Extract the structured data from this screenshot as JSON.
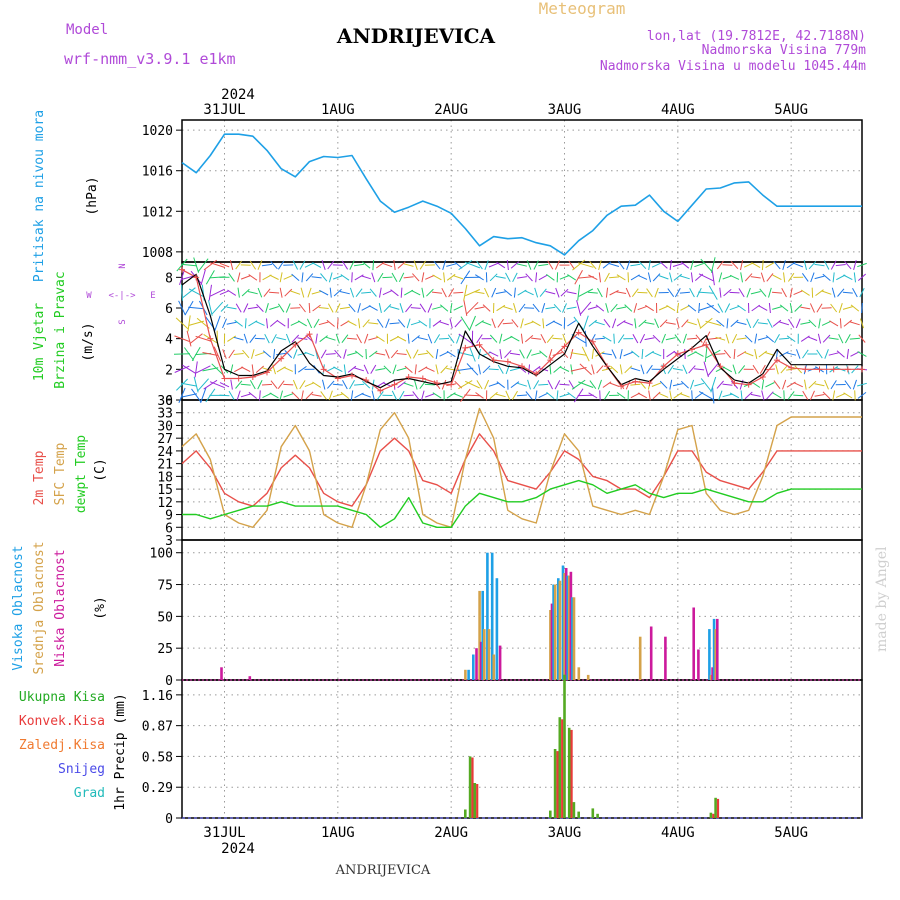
{
  "header": {
    "model_label": "Model",
    "model_name": "wrf-nmm_v3.9.1 e1km",
    "station": "ANDRIJEVICA",
    "meteogram_label": "Meteogram",
    "coords": "lon,lat (19.7812E, 42.7188N)",
    "altitude": "Nadmorska Visina 779m",
    "model_altitude": "Nadmorska Visina u modelu 1045.44m",
    "credit": "made by Angel",
    "footer_station": "ANDRIJEVICA"
  },
  "colors": {
    "pressure": "#1ea0e6",
    "temp2m": "#e8504a",
    "sfc_temp": "#d4a24a",
    "dewpoint": "#22cc22",
    "cloud_high": "#1ea0e6",
    "cloud_mid": "#d4a24a",
    "cloud_low": "#cc1a9c",
    "precip_total": "#55aa22",
    "precip_conv": "#e83a3a",
    "model_label": "#b04ad8"
  },
  "chart_data": [
    {
      "type": "line",
      "name": "pressure",
      "title_lines": [
        "Pritisak na nivou mora",
        "(hPa)"
      ],
      "ylim": [
        1007,
        1021
      ],
      "yticks": [
        1008,
        1012,
        1016,
        1020
      ],
      "x": [
        0,
        3,
        6,
        9,
        12,
        15,
        18,
        21,
        24,
        27,
        30,
        33,
        36,
        39,
        42,
        45,
        48,
        51,
        54,
        57,
        60,
        63,
        66,
        69,
        72,
        75,
        78,
        81,
        84,
        87,
        90,
        93,
        96,
        99,
        102,
        105,
        108,
        111,
        114,
        117,
        120,
        123,
        126,
        129,
        132,
        135,
        138,
        141,
        144
      ],
      "values": [
        1016.8,
        1015.8,
        1017.5,
        1019.6,
        1019.6,
        1019.4,
        1018.0,
        1016.2,
        1015.4,
        1016.9,
        1017.4,
        1017.3,
        1017.5,
        1015.2,
        1013.0,
        1011.9,
        1012.4,
        1013.0,
        1012.5,
        1011.8,
        1010.3,
        1008.6,
        1009.5,
        1009.3,
        1009.4,
        1008.9,
        1008.6,
        1007.7,
        1009.1,
        1010.1,
        1011.6,
        1012.5,
        1012.6,
        1013.6,
        1012.0,
        1011.0,
        1012.6,
        1014.2,
        1014.3,
        1014.8,
        1014.9,
        1013.6,
        1012.5,
        1012.5,
        1012.5,
        1012.5,
        1012.5,
        1012.5,
        1012.5
      ]
    },
    {
      "type": "line",
      "name": "wind",
      "title_lines": [
        "10m Vjetar",
        "Brzina i Pravac",
        "(m/s)"
      ],
      "compass": {
        "north": "N",
        "south": "S",
        "west": "W",
        "east": "E"
      },
      "ylim": [
        0,
        9
      ],
      "yticks": [
        0,
        2,
        4,
        6,
        8
      ],
      "x": [
        0,
        3,
        6,
        9,
        12,
        15,
        18,
        21,
        24,
        27,
        30,
        33,
        36,
        39,
        42,
        45,
        48,
        51,
        54,
        57,
        60,
        63,
        66,
        69,
        72,
        75,
        78,
        81,
        84,
        87,
        90,
        93,
        96,
        99,
        102,
        105,
        108,
        111,
        114,
        117,
        120,
        123,
        126,
        129,
        132,
        135,
        138,
        141,
        144
      ],
      "speed": [
        7.5,
        8.2,
        5.5,
        2.0,
        1.6,
        1.6,
        1.9,
        3.2,
        3.8,
        2.4,
        1.6,
        1.5,
        1.7,
        1.2,
        0.8,
        1.3,
        1.4,
        1.2,
        1.0,
        1.2,
        4.5,
        3.0,
        2.5,
        2.2,
        2.1,
        1.6,
        2.3,
        3.0,
        5.0,
        3.5,
        2.2,
        1.0,
        1.4,
        1.2,
        2.0,
        2.7,
        3.4,
        4.2,
        2.1,
        1.3,
        1.1,
        1.7,
        3.3,
        2.3,
        2.3,
        2.3,
        2.3,
        2.3,
        2.3
      ],
      "gust": [
        8.5,
        8.0,
        4.0,
        1.4,
        1.4,
        1.5,
        1.8,
        2.7,
        3.6,
        4.3,
        2.0,
        1.4,
        1.6,
        1.3,
        0.6,
        1.0,
        1.5,
        1.4,
        1.1,
        1.0,
        3.4,
        3.6,
        2.6,
        2.5,
        2.2,
        1.7,
        2.6,
        3.5,
        4.4,
        3.8,
        2.2,
        0.9,
        1.2,
        1.1,
        2.2,
        3.0,
        3.3,
        3.6,
        2.2,
        1.1,
        1.0,
        1.5,
        2.6,
        2.1,
        2.0,
        2.0,
        2.0,
        2.0,
        2.0
      ]
    },
    {
      "type": "line",
      "name": "temperature",
      "title_lines": [
        "2m Temp",
        "SFC Temp",
        "dewpt Temp",
        "(C)"
      ],
      "ylim": [
        3,
        36
      ],
      "yticks": [
        3,
        6,
        9,
        12,
        15,
        18,
        21,
        24,
        27,
        30,
        33,
        36
      ],
      "x": [
        0,
        3,
        6,
        9,
        12,
        15,
        18,
        21,
        24,
        27,
        30,
        33,
        36,
        39,
        42,
        45,
        48,
        51,
        54,
        57,
        60,
        63,
        66,
        69,
        72,
        75,
        78,
        81,
        84,
        87,
        90,
        93,
        96,
        99,
        102,
        105,
        108,
        111,
        114,
        117,
        120,
        123,
        126,
        129,
        132,
        135,
        138,
        141,
        144
      ],
      "series": [
        {
          "name": "2m Temp",
          "values": [
            21,
            24,
            20,
            14,
            12,
            11,
            14,
            20,
            23,
            20,
            14,
            12,
            11,
            16,
            24,
            27,
            24,
            17,
            16,
            14,
            22,
            28,
            24,
            17,
            16,
            15,
            19,
            24,
            22,
            18,
            17,
            15,
            15,
            13,
            18,
            24,
            24,
            19,
            17,
            16,
            15,
            19,
            24,
            24,
            24,
            24,
            24,
            24,
            24
          ]
        },
        {
          "name": "SFC Temp",
          "values": [
            25,
            28,
            22,
            9,
            7,
            6,
            10,
            25,
            30,
            24,
            9,
            7,
            6,
            16,
            29,
            33,
            27,
            9,
            7,
            6,
            22,
            34,
            27,
            10,
            8,
            7,
            19,
            28,
            24,
            11,
            10,
            9,
            10,
            9,
            18,
            29,
            30,
            14,
            10,
            9,
            10,
            18,
            30,
            32,
            32,
            32,
            32,
            32,
            32
          ]
        },
        {
          "name": "dewpt Temp",
          "values": [
            9,
            9,
            8,
            9,
            10,
            11,
            11,
            12,
            11,
            11,
            11,
            11,
            10,
            9,
            6,
            8,
            13,
            7,
            6,
            6,
            11,
            14,
            13,
            12,
            12,
            13,
            15,
            16,
            17,
            16,
            14,
            15,
            16,
            14,
            13,
            14,
            14,
            15,
            14,
            13,
            12,
            12,
            14,
            15,
            15,
            15,
            15,
            15,
            15
          ]
        }
      ]
    },
    {
      "type": "bar",
      "name": "cloud_cover",
      "title_lines": [
        "Visoka Oblacnost",
        "Srednja Oblacnost",
        "Niska Oblacnost",
        "(%)"
      ],
      "ylim": [
        0,
        110
      ],
      "yticks": [
        0,
        25,
        50,
        75,
        100
      ],
      "x": [
        8,
        14,
        60,
        61,
        62,
        63,
        64,
        65,
        66,
        67,
        69,
        78,
        79,
        80,
        81,
        82,
        83,
        84,
        85,
        86,
        87,
        88,
        92,
        97,
        98,
        99,
        102,
        103,
        104,
        108,
        109,
        111,
        112,
        113,
        114
      ],
      "series": [
        {
          "name": "Visoka Oblacnost",
          "values": [
            0,
            0,
            0,
            8,
            20,
            0,
            70,
            100,
            100,
            80,
            0,
            0,
            75,
            80,
            90,
            82,
            65,
            0,
            0,
            0,
            0,
            0,
            0,
            0,
            0,
            0,
            0,
            0,
            0,
            0,
            0,
            0,
            40,
            48,
            0
          ]
        },
        {
          "name": "Srednja Oblacnost",
          "values": [
            0,
            0,
            8,
            0,
            0,
            70,
            40,
            40,
            20,
            0,
            0,
            55,
            75,
            78,
            84,
            82,
            65,
            10,
            0,
            4,
            0,
            0,
            0,
            34,
            0,
            0,
            0,
            0,
            0,
            0,
            0,
            0,
            4,
            40,
            0
          ]
        },
        {
          "name": "Niska Oblacnost",
          "values": [
            10,
            3,
            0,
            0,
            25,
            30,
            0,
            0,
            0,
            27,
            0,
            60,
            0,
            0,
            88,
            85,
            0,
            0,
            0,
            0,
            0,
            0,
            0,
            0,
            0,
            42,
            34,
            0,
            0,
            57,
            24,
            0,
            10,
            48,
            0
          ]
        }
      ]
    },
    {
      "type": "bar",
      "name": "precipitation",
      "title_lines": [
        "Ukupna Kisa",
        "Konvek.Kisa",
        "Zaledj.Kisa",
        "Snijeg",
        "Grad",
        "1hr Precip (mm)"
      ],
      "ylim": [
        0,
        1.3
      ],
      "yticks": [
        0,
        0.29,
        0.58,
        0.87,
        1.16
      ],
      "x": [
        60,
        61,
        62,
        63,
        78,
        79,
        80,
        81,
        82,
        83,
        84,
        87,
        88,
        102,
        103,
        104,
        112,
        113
      ],
      "series": [
        {
          "name": "Ukupna Kisa",
          "values": [
            0.08,
            0.58,
            0.33,
            0,
            0.07,
            0.65,
            0.95,
            1.35,
            0.85,
            0.15,
            0.06,
            0.09,
            0.04,
            0,
            0,
            0,
            0.05,
            0.19
          ]
        },
        {
          "name": "Konvek.Kisa",
          "values": [
            0,
            0.57,
            0.32,
            0,
            0,
            0.63,
            0.93,
            0,
            0.83,
            0,
            0,
            0,
            0,
            0,
            0,
            0,
            0.04,
            0.18
          ]
        }
      ]
    }
  ],
  "x_axis": {
    "year_top": "2024",
    "year_bottom": "2024",
    "days": [
      {
        "label": "31JUL",
        "hour": 9
      },
      {
        "label": "1AUG",
        "hour": 33
      },
      {
        "label": "2AUG",
        "hour": 57
      },
      {
        "label": "3AUG",
        "hour": 81
      },
      {
        "label": "4AUG",
        "hour": 105
      },
      {
        "label": "5AUG",
        "hour": 129
      }
    ]
  }
}
